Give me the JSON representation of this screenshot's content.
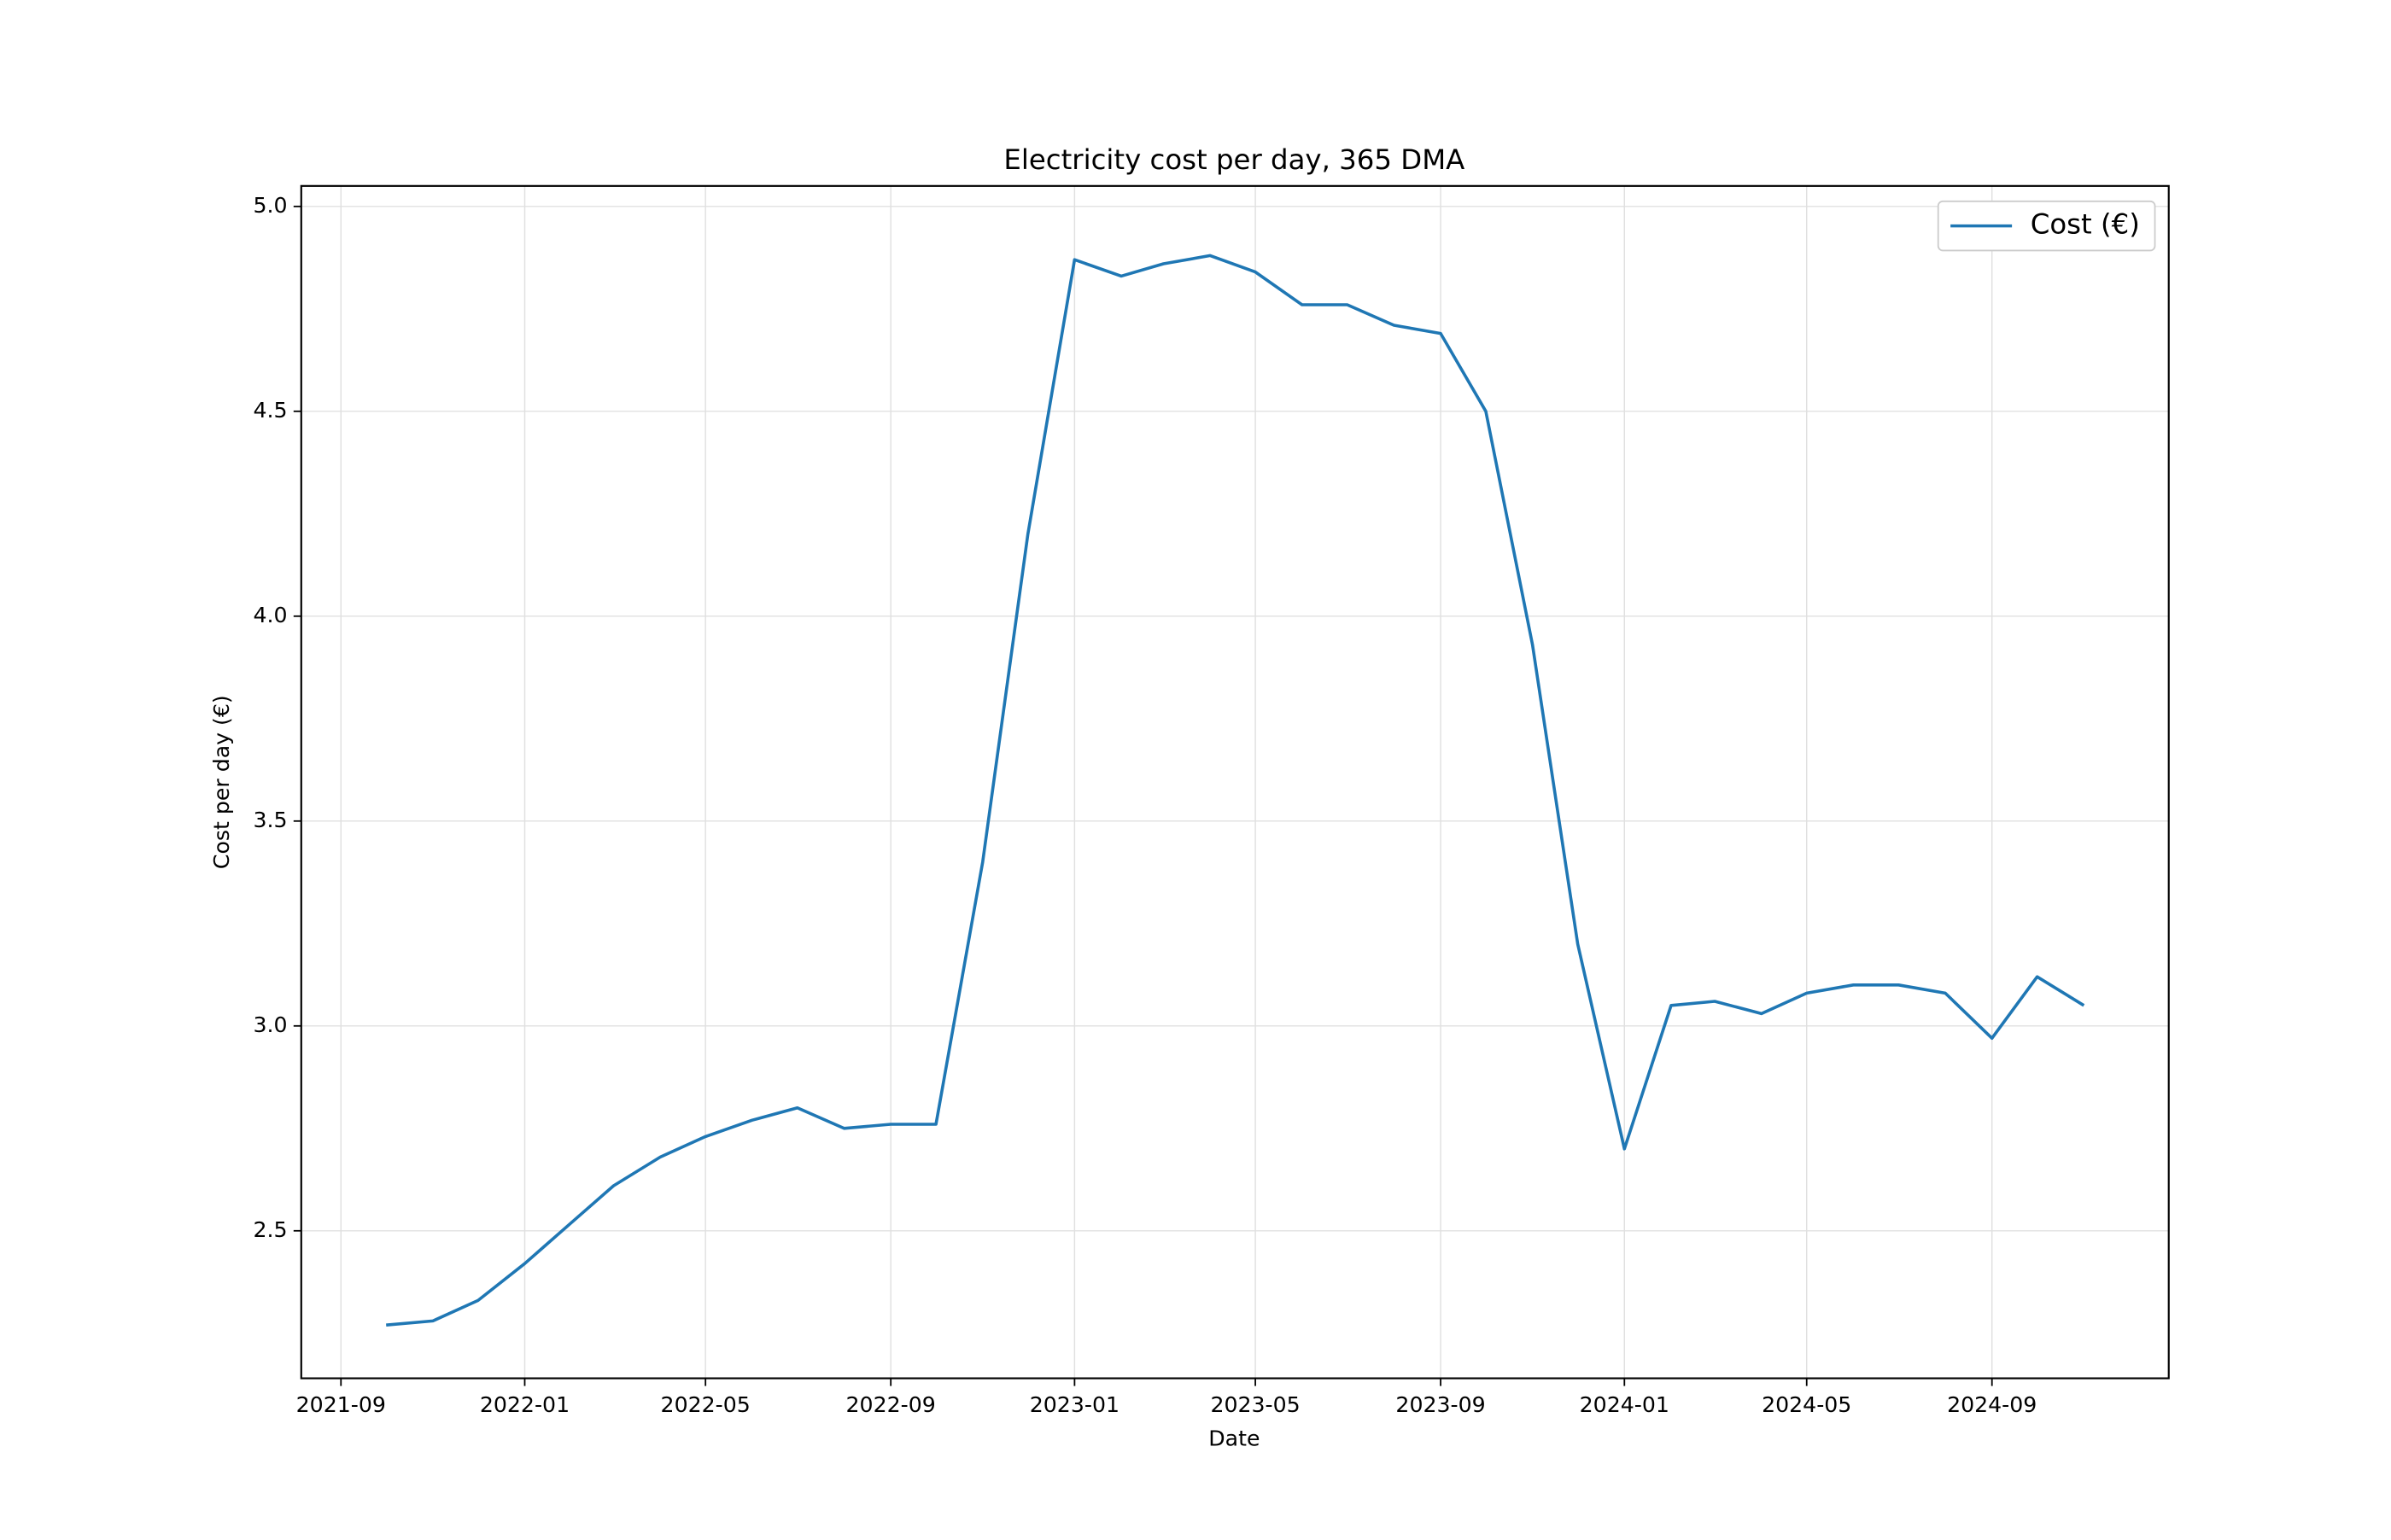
{
  "chart_data": {
    "type": "line",
    "title": "Electricity cost per day, 365 DMA",
    "xlabel": "Date",
    "ylabel": "Cost per day (€)",
    "x": [
      "2021-10",
      "2021-11",
      "2021-12",
      "2022-01",
      "2022-02",
      "2022-03",
      "2022-04",
      "2022-05",
      "2022-06",
      "2022-07",
      "2022-08",
      "2022-09",
      "2022-10",
      "2022-11",
      "2022-12",
      "2023-01",
      "2023-02",
      "2023-03",
      "2023-04",
      "2023-05",
      "2023-06",
      "2023-07",
      "2023-08",
      "2023-09",
      "2023-10",
      "2023-11",
      "2023-12",
      "2024-01",
      "2024-02",
      "2024-03",
      "2024-04",
      "2024-05",
      "2024-06",
      "2024-07",
      "2024-08",
      "2024-09",
      "2024-10",
      "2024-11"
    ],
    "series": [
      {
        "name": "Cost (€)",
        "color": "#1f77b4",
        "values": [
          2.27,
          2.28,
          2.33,
          2.42,
          2.52,
          2.61,
          2.68,
          2.73,
          2.77,
          2.8,
          2.75,
          2.76,
          2.76,
          3.4,
          4.2,
          4.87,
          4.83,
          4.86,
          4.88,
          4.84,
          4.76,
          4.76,
          4.71,
          4.69,
          4.5,
          3.93,
          3.2,
          2.7,
          3.05,
          3.06,
          3.03,
          3.08,
          3.1,
          3.1,
          3.08,
          2.97,
          3.12,
          3.05
        ]
      }
    ],
    "xticks": [
      "2021-09",
      "2022-01",
      "2022-05",
      "2022-09",
      "2023-01",
      "2023-05",
      "2023-09",
      "2024-01",
      "2024-05",
      "2024-09"
    ],
    "ylim": [
      2.14,
      5.05
    ],
    "yticks": [
      2.5,
      {
        "value": 3.0,
        "label": "3.0"
      },
      3.5,
      {
        "value": 4.0,
        "label": "4.0"
      },
      4.5,
      {
        "value": 5.0,
        "label": "5.0"
      }
    ],
    "grid": true,
    "legend": "upper right"
  }
}
